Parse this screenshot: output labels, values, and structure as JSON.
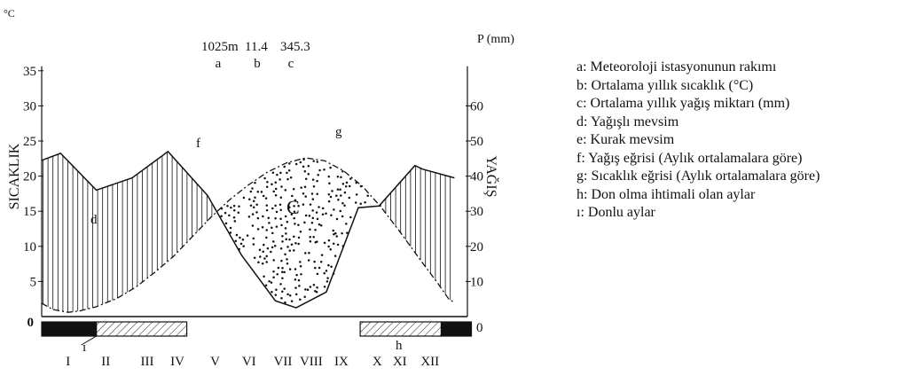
{
  "chart_data": {
    "type": "line",
    "title": "",
    "station": {
      "elevation_label": "1025m",
      "mean_temp_label": "11.4",
      "precip_label": "345.3"
    },
    "station_letters": [
      "a",
      "b",
      "c"
    ],
    "left_axis": {
      "unit": "°C",
      "label": "SICAKLIK",
      "ylim": [
        0,
        35
      ],
      "ticks": [
        5,
        10,
        15,
        20,
        25,
        30,
        35
      ]
    },
    "right_axis": {
      "unit": "P (mm)",
      "label": "YAĞIŞ",
      "ylim": [
        0,
        70
      ],
      "ticks": [
        10,
        20,
        30,
        40,
        50,
        60
      ]
    },
    "zero_label_left": "0",
    "zero_label_right": "0",
    "categories": [
      "I",
      "II",
      "III",
      "IV",
      "V",
      "VI",
      "VII",
      "VIII",
      "IX",
      "X",
      "XI",
      "XII"
    ],
    "x_positions": [
      0.7,
      1.7,
      2.8,
      3.6,
      4.6,
      5.5,
      6.4,
      7.15,
      7.95,
      8.9,
      9.5,
      10.3,
      10.95
    ],
    "series": [
      {
        "name": "Yağış eğrisi",
        "axis": "right",
        "x": [
          0.0,
          0.5,
          1.45,
          2.4,
          3.35,
          4.4,
          5.3,
          6.2,
          6.75,
          7.55,
          8.4,
          8.95,
          9.9,
          10.1,
          10.95
        ],
        "values": [
          44.5,
          46.5,
          36.0,
          39.5,
          47.0,
          34.5,
          17.5,
          4.5,
          2.5,
          7.0,
          31.0,
          31.5,
          43.0,
          42.0,
          39.5
        ]
      },
      {
        "name": "Sıcaklık eğrisi",
        "axis": "left",
        "x": [
          0.0,
          0.3,
          0.7,
          1.0,
          1.45,
          2.0,
          2.5,
          3.0,
          3.5,
          4.0,
          4.5,
          5.0,
          5.5,
          6.0,
          6.5,
          7.0,
          7.5,
          8.0,
          8.5,
          9.0,
          9.5,
          10.0,
          10.5,
          10.8,
          10.95
        ],
        "values": [
          1.9,
          1.0,
          0.6,
          0.8,
          1.4,
          2.6,
          4.2,
          6.3,
          8.6,
          11.4,
          14.2,
          16.7,
          18.8,
          20.6,
          21.9,
          22.6,
          22.2,
          20.8,
          18.6,
          15.6,
          12.1,
          8.4,
          4.8,
          2.5,
          2.0
        ]
      }
    ],
    "annotations": {
      "d": "d",
      "f": "f",
      "g": "g",
      "c": "C",
      "h": "h",
      "i": "ı"
    },
    "frost_bars": [
      {
        "label": "ı",
        "start": 0,
        "end": 1.45,
        "fill": "black"
      },
      {
        "label": "h",
        "start": 1.45,
        "end": 3.85,
        "fill": "hatch"
      },
      {
        "label": "h",
        "start": 8.45,
        "end": 10.6,
        "fill": "hatch"
      },
      {
        "label": "ı",
        "start": 10.6,
        "end": 11.4,
        "fill": "black"
      }
    ],
    "grid": false,
    "legend_position": "right"
  },
  "legend": {
    "items": [
      "a: Meteoroloji istasyonunun rakımı",
      "b: Ortalama yıllık sıcaklık  (°C)",
      "c: Ortalama yıllık yağış miktarı (mm)",
      "d: Yağışlı mevsim",
      "e: Kurak mevsim",
      "f: Yağış eğrisi (Aylık ortalamalara göre)",
      "g: Sıcaklık eğrisi (Aylık ortalamalara göre)",
      "h: Don olma ihtimali olan aylar",
      "ı: Donlu aylar"
    ]
  },
  "colors": {
    "ink": "#111111",
    "background": "#ffffff"
  }
}
